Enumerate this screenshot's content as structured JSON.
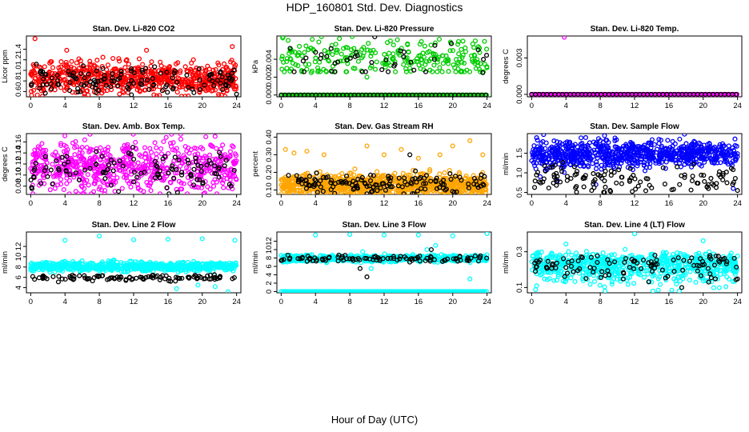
{
  "title": "HDP_160801  Std. Dev. Diagnostics",
  "xlabel": "Hour of Day (UTC)",
  "chart_data": [
    {
      "type": "scatter",
      "title": "Stan. Dev. Li-820 CO2",
      "ylabel": "Licor ppm",
      "ylim": [
        0.5,
        1.65
      ],
      "yticks": [
        "0.6",
        "0.8",
        "1.0",
        "1.2",
        "1.4"
      ],
      "ytick_values": [
        0.6,
        0.8,
        1.0,
        1.2,
        1.4
      ],
      "xlim": [
        -0.5,
        24.5
      ],
      "xticks": [
        0,
        4,
        8,
        12,
        16,
        20,
        24
      ],
      "grid": false,
      "series": [
        {
          "color": "#ff0000",
          "n": 700,
          "base": 0.85,
          "spread": 0.15,
          "extra": [
            [
              0.5,
              1.6
            ],
            [
              4.2,
              1.38
            ],
            [
              13.5,
              1.38
            ],
            [
              23.5,
              1.45
            ]
          ]
        },
        {
          "color": "#000000",
          "n": 130,
          "base": 0.82,
          "spread": 0.12,
          "extra": [
            [
              7.9,
              0.62
            ],
            [
              24,
              0.55
            ]
          ]
        }
      ]
    },
    {
      "type": "scatter",
      "title": "Stan. Dev. Li-820 Pressure",
      "ylabel": "kPa",
      "ylim": [
        -0.0002,
        0.0066
      ],
      "yticks": [
        "0.000",
        "0.002",
        "0.004"
      ],
      "ytick_values": [
        0,
        0.002,
        0.004
      ],
      "xlim": [
        -0.5,
        24.5
      ],
      "xticks": [
        0,
        4,
        8,
        12,
        16,
        20,
        24
      ],
      "grid": false,
      "series": [
        {
          "color": "#00cc00",
          "n": 260,
          "base": 0.0042,
          "spread": 0.0012,
          "zero_line": true,
          "extra": [
            [
              3.5,
              0.0025
            ],
            [
              10,
              0.002
            ],
            [
              15,
              0.003
            ]
          ]
        },
        {
          "color": "#000000",
          "n": 40,
          "base": 0.004,
          "spread": 0.0012,
          "zero_line": true,
          "extra": [
            [
              23.5,
              0.0025
            ]
          ]
        }
      ]
    },
    {
      "type": "scatter",
      "title": "Stan. Dev. Li-820 Temp.",
      "ylabel": "degrees C",
      "ylim": [
        -0.0002,
        0.0048
      ],
      "yticks": [
        "0.000",
        "0.003"
      ],
      "ytick_values": [
        0,
        0.003
      ],
      "xlim": [
        -0.5,
        24.5
      ],
      "xticks": [
        0,
        4,
        8,
        12,
        16,
        20,
        24
      ],
      "grid": false,
      "series": [
        {
          "color": "#ff00ff",
          "n": 0,
          "base": 0,
          "spread": 0,
          "zero_line": true,
          "extra": [
            [
              3.8,
              0.0047
            ],
            [
              0.2,
              0
            ]
          ]
        },
        {
          "color": "#000000",
          "n": 0,
          "base": 0,
          "spread": 0,
          "zero_line": true,
          "extra": []
        }
      ]
    },
    {
      "type": "scatter",
      "title": "Stan. Dev. Amb. Box Temp.",
      "ylabel": "degrees C",
      "ylim": [
        0.065,
        0.175
      ],
      "yticks": [
        "0.08",
        "0.10",
        "0.12",
        "0.14",
        "0.16"
      ],
      "ytick_values": [
        0.08,
        0.1,
        0.12,
        0.14,
        0.16
      ],
      "xlim": [
        -0.5,
        24.5
      ],
      "xticks": [
        0,
        4,
        8,
        12,
        16,
        20,
        24
      ],
      "grid": false,
      "series": [
        {
          "color": "#ff00ff",
          "n": 650,
          "base": 0.115,
          "spread": 0.022,
          "extra": [
            [
              17.5,
              0.165
            ],
            [
              21.5,
              0.17
            ],
            [
              23.5,
              0.075
            ]
          ]
        },
        {
          "color": "#000000",
          "n": 110,
          "base": 0.11,
          "spread": 0.018,
          "extra": [
            [
              1.2,
              0.085
            ],
            [
              19,
              0.082
            ]
          ]
        }
      ]
    },
    {
      "type": "scatter",
      "title": "Stan. Dev. Gas Stream RH",
      "ylabel": "percent",
      "ylim": [
        0.075,
        0.42
      ],
      "yticks": [
        "0.10",
        "0.20",
        "0.30",
        "0.40"
      ],
      "ytick_values": [
        0.1,
        0.2,
        0.3,
        0.4
      ],
      "xlim": [
        -0.5,
        24.5
      ],
      "xticks": [
        0,
        4,
        8,
        12,
        16,
        20,
        24
      ],
      "grid": false,
      "series": [
        {
          "color": "#ffa500",
          "n": 900,
          "base": 0.13,
          "spread": 0.03,
          "extra": [
            [
              0.5,
              0.33
            ],
            [
              1.5,
              0.31
            ],
            [
              3,
              0.32
            ],
            [
              5,
              0.3
            ],
            [
              10,
              0.35
            ],
            [
              12,
              0.3
            ],
            [
              14,
              0.33
            ],
            [
              16,
              0.28
            ],
            [
              18.5,
              0.3
            ],
            [
              20,
              0.35
            ],
            [
              22,
              0.38
            ],
            [
              23.5,
              0.3
            ]
          ]
        },
        {
          "color": "#000000",
          "n": 140,
          "base": 0.14,
          "spread": 0.03,
          "extra": [
            [
              15,
              0.3
            ]
          ]
        }
      ]
    },
    {
      "type": "scatter",
      "title": "Stan. Dev. Sample Flow",
      "ylabel": "ml/min",
      "ylim": [
        0.45,
        2.0
      ],
      "yticks": [
        "0.5",
        "1.0",
        "1.5"
      ],
      "ytick_values": [
        0.5,
        1.0,
        1.5
      ],
      "xlim": [
        -0.5,
        24.5
      ],
      "xticks": [
        0,
        4,
        8,
        12,
        16,
        20,
        24
      ],
      "grid": false,
      "series": [
        {
          "color": "#0000ff",
          "n": 800,
          "base": 1.48,
          "spread": 0.17,
          "extra": [
            [
              8.5,
              1.95
            ],
            [
              0.5,
              1.1
            ],
            [
              1,
              0.9
            ],
            [
              3,
              0.8
            ],
            [
              7.5,
              0.7
            ],
            [
              23.5,
              0.6
            ]
          ]
        },
        {
          "color": "#000000",
          "n": 120,
          "base": 0.85,
          "spread": 0.18,
          "extra": [
            [
              7,
              0.55
            ],
            [
              8.5,
              0.5
            ],
            [
              24,
              0.55
            ]
          ]
        }
      ]
    },
    {
      "type": "scatter",
      "title": "Stan. Dev. Line 2 Flow",
      "ylabel": "ml/min",
      "ylim": [
        3,
        14.8
      ],
      "yticks": [
        "4",
        "6",
        "8",
        "10",
        "12"
      ],
      "ytick_values": [
        4,
        6,
        8,
        10,
        12
      ],
      "xlim": [
        -0.5,
        24.5
      ],
      "xticks": [
        0,
        4,
        8,
        12,
        16,
        20,
        24
      ],
      "grid": false,
      "series": [
        {
          "color": "#00ffff",
          "n": 700,
          "base": 8.1,
          "spread": 0.45,
          "extra": [
            [
              4,
              13.2
            ],
            [
              8,
              14
            ],
            [
              12,
              13.3
            ],
            [
              16,
              13.4
            ],
            [
              20,
              13.5
            ],
            [
              23.8,
              13.2
            ],
            [
              17,
              3.8
            ],
            [
              19.5,
              4.5
            ],
            [
              21.5,
              4.2
            ],
            [
              23,
              3.2
            ]
          ]
        },
        {
          "color": "#000000",
          "n": 110,
          "base": 5.9,
          "spread": 0.3,
          "extra": []
        }
      ]
    },
    {
      "type": "scatter",
      "title": "Stan. Dev. Line 3 Flow",
      "ylabel": "ml/min",
      "ylim": [
        -0.3,
        14.2
      ],
      "yticks": [
        "0",
        "2",
        "4",
        "6",
        "8",
        "10",
        "12"
      ],
      "ytick_values": [
        0,
        2,
        4,
        6,
        8,
        10,
        12
      ],
      "xlim": [
        -0.5,
        24.5
      ],
      "xticks": [
        0,
        4,
        8,
        12,
        16,
        20,
        24
      ],
      "grid": false,
      "series": [
        {
          "color": "#00ffff",
          "n": 600,
          "base": 7.9,
          "spread": 0.4,
          "zero_line": true,
          "extra": [
            [
              4,
              13.5
            ],
            [
              8,
              13.6
            ],
            [
              12,
              13.5
            ],
            [
              16,
              13.5
            ],
            [
              20,
              13.3
            ],
            [
              24,
              13.8
            ],
            [
              9.5,
              9.5
            ],
            [
              10,
              8.5
            ],
            [
              10.5,
              5.5
            ],
            [
              17,
              10
            ],
            [
              18,
              11
            ],
            [
              22,
              3
            ]
          ]
        },
        {
          "color": "#000000",
          "n": 100,
          "base": 7.9,
          "spread": 0.4,
          "extra": [
            [
              10,
              3.5
            ],
            [
              9.2,
              5.5
            ],
            [
              17.5,
              10
            ]
          ]
        }
      ]
    },
    {
      "type": "scatter",
      "title": "Stan. Dev. Line 4 (LT) Flow",
      "ylabel": "ml/min",
      "ylim": [
        0.085,
        0.55
      ],
      "log": true,
      "yticks": [
        "0.1",
        "0.3"
      ],
      "ytick_values": [
        0.1,
        0.3
      ],
      "xlim": [
        -0.5,
        24.5
      ],
      "xticks": [
        0,
        4,
        8,
        12,
        16,
        20,
        24
      ],
      "grid": false,
      "series": [
        {
          "color": "#00ffff",
          "n": 700,
          "base": 0.2,
          "spread": 0.045,
          "extra": [
            [
              12,
              0.52
            ],
            [
              4,
              0.38
            ],
            [
              20,
              0.42
            ],
            [
              1.5,
              0.13
            ],
            [
              17.5,
              0.1
            ],
            [
              21,
              0.12
            ]
          ]
        },
        {
          "color": "#000000",
          "n": 110,
          "base": 0.2,
          "spread": 0.04,
          "extra": [
            [
              17.5,
              0.1
            ],
            [
              24,
              0.13
            ]
          ]
        }
      ]
    }
  ]
}
